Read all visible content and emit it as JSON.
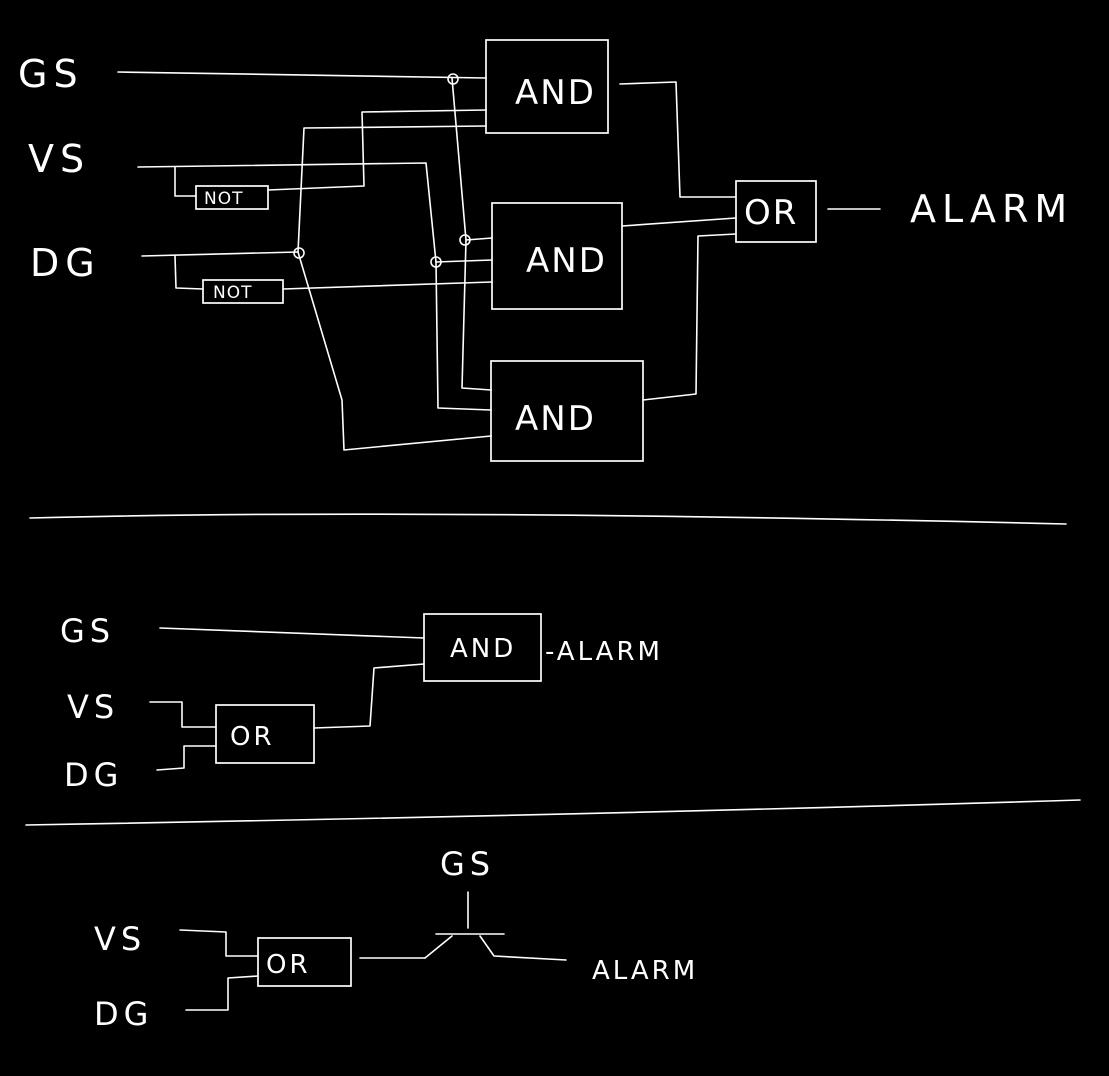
{
  "colors": {
    "background": "#000000",
    "ink": "#ffffff"
  },
  "diagram1": {
    "inputs": {
      "gs": "GS",
      "vs": "VS",
      "dg": "DG"
    },
    "not_vs": "NOT",
    "not_dg": "NOT",
    "and_top": "AND",
    "and_mid": "AND",
    "and_bot": "AND",
    "or_gate": "OR",
    "output": "ALARM"
  },
  "diagram2": {
    "inputs": {
      "gs": "GS",
      "vs": "VS",
      "dg": "DG"
    },
    "or_gate": "OR",
    "and_gate": "AND",
    "output": "-ALARM"
  },
  "diagram3": {
    "inputs": {
      "gs": "GS",
      "vs": "VS",
      "dg": "DG"
    },
    "or_gate": "OR",
    "output": "ALARM"
  }
}
